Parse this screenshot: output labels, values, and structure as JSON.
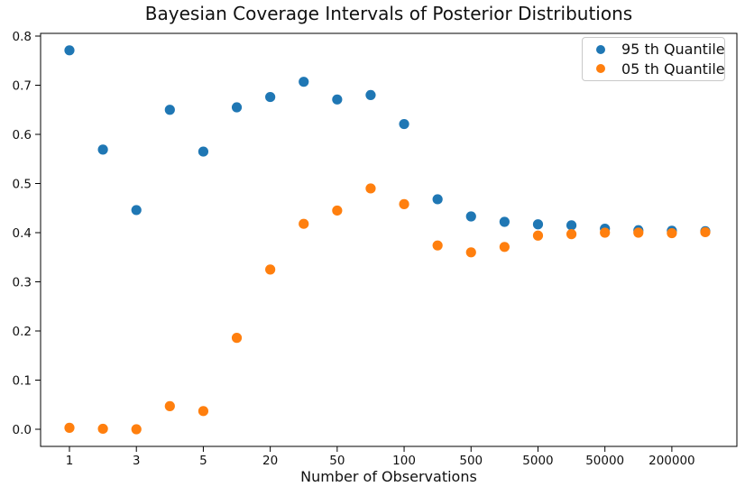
{
  "title": "Bayesian Coverage Intervals of Posterior Distributions",
  "chart_data": {
    "type": "scatter",
    "title": "Bayesian Coverage Intervals of Posterior Distributions",
    "xlabel": "Number of Observations",
    "ylabel": "",
    "x_axis": {
      "scale": "log-like, 20 evenly spaced sample positions",
      "n_points": 20,
      "tick_labels": [
        "1",
        "3",
        "5",
        "20",
        "50",
        "100",
        "500",
        "5000",
        "50000",
        "200000"
      ],
      "tick_point_indices": [
        0,
        2,
        4,
        6,
        8,
        10,
        12,
        14,
        16,
        18
      ]
    },
    "y_axis": {
      "ticks": [
        0.0,
        0.1,
        0.2,
        0.3,
        0.4,
        0.5,
        0.6,
        0.7,
        0.8
      ],
      "ylim": [
        -0.035,
        0.805
      ]
    },
    "grid": false,
    "legend_position": "upper right",
    "series": [
      {
        "name": "95 th Quantile",
        "color": "#1f77b4",
        "values": [
          0.771,
          0.569,
          0.446,
          0.65,
          0.565,
          0.655,
          0.676,
          0.707,
          0.671,
          0.68,
          0.621,
          0.468,
          0.433,
          0.422,
          0.417,
          0.415,
          0.408,
          0.405,
          0.404,
          0.403
        ]
      },
      {
        "name": "05 th Quantile",
        "color": "#ff7f0e",
        "values": [
          0.003,
          0.001,
          0.0,
          0.047,
          0.037,
          0.186,
          0.325,
          0.418,
          0.445,
          0.49,
          0.458,
          0.374,
          0.36,
          0.371,
          0.394,
          0.397,
          0.4,
          0.4,
          0.399,
          0.401
        ]
      }
    ]
  }
}
